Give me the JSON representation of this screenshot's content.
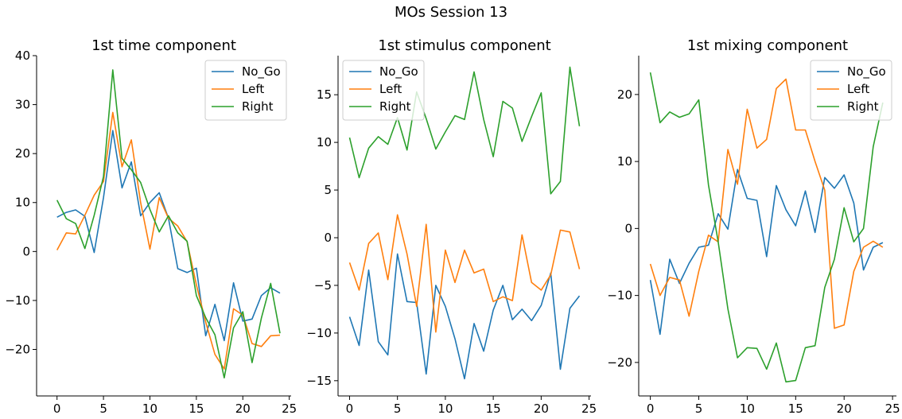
{
  "figure": {
    "suptitle": "MOs Session 13"
  },
  "chart_data": [
    {
      "type": "line",
      "title": "1st time component",
      "xlabel": "",
      "ylabel": "",
      "xlim": [
        -2.2,
        25.2
      ],
      "ylim": [
        -29.5,
        40
      ],
      "xticks": [
        0,
        5,
        10,
        15,
        20,
        25
      ],
      "yticks": [
        -20,
        -10,
        0,
        10,
        20,
        30,
        40
      ],
      "legend": "top-right",
      "x": [
        0,
        1,
        2,
        3,
        4,
        5,
        6,
        7,
        8,
        9,
        10,
        11,
        12,
        13,
        14,
        15,
        16,
        17,
        18,
        19,
        20,
        21,
        22,
        23,
        24
      ],
      "series": [
        {
          "name": "No_Go",
          "color": "#1f77b4",
          "values": [
            7.0,
            8.0,
            8.5,
            7.2,
            -0.2,
            11.0,
            24.7,
            13.0,
            18.3,
            7.3,
            10.0,
            12.0,
            6.8,
            -3.5,
            -4.3,
            -3.4,
            -17.2,
            -10.8,
            -18.2,
            -6.4,
            -14.2,
            -13.8,
            -9.0,
            -7.4,
            -8.5
          ]
        },
        {
          "name": "Left",
          "color": "#ff7f0e",
          "values": [
            0.3,
            3.8,
            3.6,
            7.4,
            11.5,
            14.3,
            28.4,
            17.3,
            22.8,
            10.0,
            0.5,
            11.0,
            6.8,
            5.2,
            2.0,
            -6.8,
            -14.4,
            -21.0,
            -24.0,
            -11.7,
            -13.0,
            -18.8,
            -19.4,
            -17.2,
            -17.1
          ]
        },
        {
          "name": "Right",
          "color": "#2ca02c",
          "values": [
            10.5,
            6.7,
            5.7,
            0.6,
            7.4,
            15.3,
            37.1,
            19.0,
            16.7,
            14.1,
            8.6,
            4.0,
            7.3,
            3.8,
            2.1,
            -9.0,
            -13.5,
            -17.0,
            -25.8,
            -15.6,
            -12.3,
            -22.7,
            -13.6,
            -6.5,
            -16.7
          ]
        }
      ]
    },
    {
      "type": "line",
      "title": "1st stimulus component",
      "xlabel": "",
      "ylabel": "",
      "xlim": [
        -1.2,
        25.2
      ],
      "ylim": [
        -16.6,
        19.1
      ],
      "xticks": [
        0,
        5,
        10,
        15,
        20,
        25
      ],
      "yticks": [
        -15,
        -10,
        -5,
        0,
        5,
        10,
        15
      ],
      "legend": "top-left",
      "x": [
        0,
        1,
        2,
        3,
        4,
        5,
        6,
        7,
        8,
        9,
        10,
        11,
        12,
        13,
        14,
        15,
        16,
        17,
        18,
        19,
        20,
        21,
        22,
        23,
        24
      ],
      "series": [
        {
          "name": "No_Go",
          "color": "#1f77b4",
          "values": [
            -8.3,
            -11.3,
            -3.4,
            -10.9,
            -12.3,
            -1.7,
            -6.7,
            -6.8,
            -14.3,
            -5.0,
            -7.2,
            -10.6,
            -14.8,
            -9.0,
            -11.9,
            -7.6,
            -5.0,
            -8.6,
            -7.5,
            -8.7,
            -7.1,
            -3.7,
            -13.8,
            -7.4,
            -6.1
          ]
        },
        {
          "name": "Left",
          "color": "#ff7f0e",
          "values": [
            -2.6,
            -5.5,
            -0.6,
            0.5,
            -4.4,
            2.4,
            -1.7,
            -7.2,
            1.4,
            -9.9,
            -1.3,
            -4.7,
            -1.3,
            -3.7,
            -3.3,
            -6.7,
            -6.2,
            -6.6,
            0.3,
            -4.7,
            -5.5,
            -3.9,
            0.8,
            0.6,
            -3.3
          ]
        },
        {
          "name": "Right",
          "color": "#2ca02c",
          "values": [
            10.5,
            6.3,
            9.4,
            10.6,
            9.8,
            12.6,
            9.2,
            15.3,
            12.5,
            9.3,
            11.1,
            12.8,
            12.4,
            17.4,
            12.4,
            8.5,
            14.3,
            13.6,
            10.1,
            12.7,
            15.2,
            4.6,
            5.9,
            17.9,
            11.7
          ]
        }
      ]
    },
    {
      "type": "line",
      "title": "1st mixing component",
      "xlabel": "",
      "ylabel": "",
      "xlim": [
        -1.2,
        25.4
      ],
      "ylim": [
        -25.0,
        25.8
      ],
      "xticks": [
        0,
        5,
        10,
        15,
        20,
        25
      ],
      "yticks": [
        -20,
        -10,
        0,
        10,
        20
      ],
      "legend": "top-right",
      "x": [
        0,
        1,
        2,
        3,
        4,
        5,
        6,
        7,
        8,
        9,
        10,
        11,
        12,
        13,
        14,
        15,
        16,
        17,
        18,
        19,
        20,
        21,
        22,
        23,
        24
      ],
      "series": [
        {
          "name": "No_Go",
          "color": "#1f77b4",
          "values": [
            -7.7,
            -15.8,
            -4.6,
            -8.2,
            -5.2,
            -2.8,
            -2.5,
            2.2,
            -0.1,
            8.8,
            4.5,
            4.2,
            -4.2,
            6.4,
            2.8,
            0.4,
            5.6,
            -0.6,
            7.6,
            6.0,
            8.0,
            3.8,
            -6.2,
            -2.8,
            -2.1
          ]
        },
        {
          "name": "Left",
          "color": "#ff7f0e",
          "values": [
            -5.3,
            -10.0,
            -7.3,
            -7.7,
            -13.1,
            -6.4,
            -1.0,
            -2.0,
            11.8,
            6.6,
            17.8,
            12.0,
            13.3,
            20.9,
            22.3,
            14.7,
            14.7,
            10.0,
            5.7,
            -14.9,
            -14.4,
            -6.4,
            -2.8,
            -1.9,
            -2.8
          ]
        },
        {
          "name": "Right",
          "color": "#2ca02c",
          "values": [
            23.3,
            15.8,
            17.4,
            16.6,
            17.1,
            19.2,
            6.5,
            -2.0,
            -12.0,
            -19.3,
            -17.8,
            -17.9,
            -21.0,
            -17.1,
            -22.9,
            -22.7,
            -17.8,
            -17.5,
            -8.8,
            -4.6,
            3.1,
            -2.0,
            0.0,
            12.2,
            18.8
          ]
        }
      ]
    }
  ]
}
